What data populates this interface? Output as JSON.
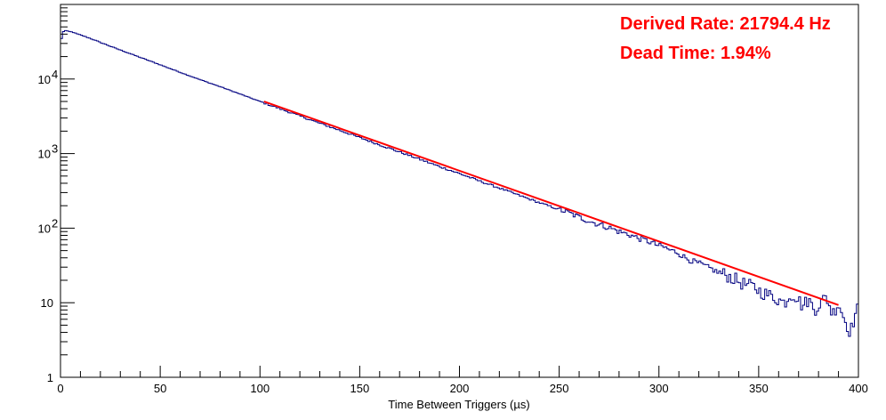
{
  "chart_data": {
    "type": "line",
    "title": "",
    "xlabel": "Time Between Triggers (µs)",
    "ylabel": "",
    "xlim": [
      0,
      400
    ],
    "ylim": [
      1,
      100000
    ],
    "y_scale": "log",
    "grid": false,
    "x_tick_labels": [
      "0",
      "50",
      "100",
      "150",
      "200",
      "250",
      "300",
      "350",
      "400"
    ],
    "y_ticks": [
      {
        "value": 1,
        "label": "1",
        "exp": ""
      },
      {
        "value": 10,
        "label": "10",
        "exp": ""
      },
      {
        "value": 100,
        "label": "10",
        "exp": "2"
      },
      {
        "value": 1000,
        "label": "10",
        "exp": "3"
      },
      {
        "value": 10000,
        "label": "10",
        "exp": "4"
      }
    ],
    "annotations": [
      "Derived Rate: 21794.4 Hz",
      "Dead Time: 1.94%"
    ],
    "series": [
      {
        "type": "histogram",
        "color": "#000080",
        "bin_width": 1,
        "x": [
          0,
          1,
          2,
          3,
          4,
          5,
          6,
          7,
          8,
          10,
          15,
          20,
          25,
          30,
          40,
          50,
          60,
          70,
          80,
          90,
          100,
          110,
          120,
          130,
          140,
          150,
          160,
          170,
          180,
          190,
          200,
          210,
          220,
          230,
          240,
          250,
          255,
          260,
          265,
          270,
          275,
          280,
          285,
          290,
          295,
          300,
          303,
          306,
          309,
          312,
          315,
          318,
          321,
          324,
          327,
          330,
          333,
          336,
          339,
          342,
          345,
          348,
          351,
          354,
          357,
          360,
          363,
          366,
          369,
          372,
          375,
          378,
          381,
          384,
          387,
          390,
          393,
          396,
          399
        ],
        "values": [
          29000,
          42000,
          45000,
          44000,
          43500,
          43000,
          42500,
          41800,
          40500,
          39000,
          35000,
          31000,
          27500,
          24500,
          19500,
          15500,
          12300,
          9800,
          7900,
          6300,
          5000,
          4000,
          3200,
          2550,
          2050,
          1640,
          1310,
          1050,
          840,
          670,
          540,
          430,
          345,
          275,
          220,
          178,
          160,
          140,
          125,
          112,
          102,
          90,
          82,
          73,
          66,
          58,
          55,
          50,
          48,
          42,
          38,
          35,
          33,
          30,
          28,
          25,
          24,
          22,
          20,
          18,
          17,
          16,
          14,
          13,
          12,
          11,
          10,
          13,
          12,
          9,
          11,
          8,
          10,
          12,
          7,
          10,
          6,
          4,
          8
        ]
      },
      {
        "type": "fit",
        "color": "#ff0000",
        "x": [
          102,
          390
        ],
        "values": [
          5000,
          9.3
        ]
      }
    ]
  }
}
